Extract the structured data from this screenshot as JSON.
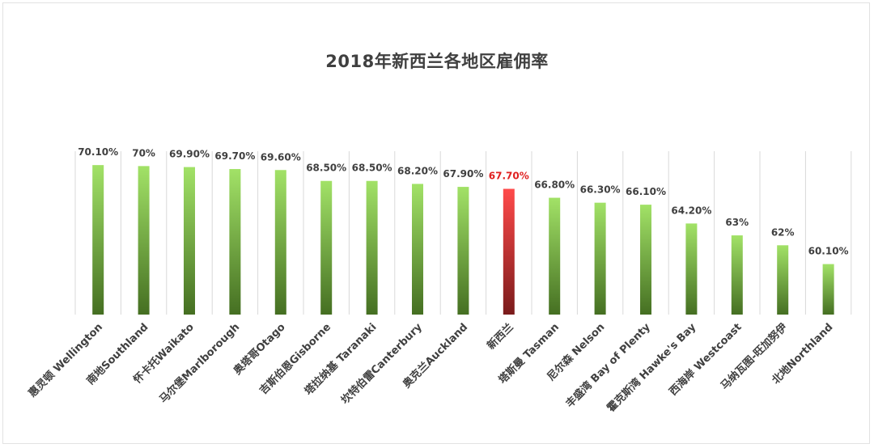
{
  "chart_data": {
    "type": "bar",
    "title": "2018年新西兰各地区雇佣率",
    "xlabel": "",
    "ylabel": "",
    "ylim": [
      55,
      71.5
    ],
    "grid": false,
    "legend": "none",
    "categories": [
      "惠灵顿 Wellington",
      "南地Southland",
      "怀卡托Waikato",
      "马尔堡Marlborough",
      "奥塔哥Otago",
      "吉斯伯恩Gisborne",
      "塔拉纳基 Taranaki",
      "坎特伯雷Canterbury",
      "奥克兰Auckland",
      "新西兰",
      "塔斯曼 Tasman",
      "尼尔森 Nelson",
      "丰盛湾 Bay of Plenty",
      "霍克斯湾 Hawke's Bay",
      "西海岸 Westcoast",
      "马纳瓦图-旺加努伊",
      "北地Northland"
    ],
    "values": [
      70.1,
      70,
      69.9,
      69.7,
      69.6,
      68.5,
      68.5,
      68.2,
      67.9,
      67.7,
      66.8,
      66.3,
      66.1,
      64.2,
      63,
      62,
      60.1
    ],
    "value_labels": [
      "70.10%",
      "70%",
      "69.90%",
      "69.70%",
      "69.60%",
      "68.50%",
      "68.50%",
      "68.20%",
      "67.90%",
      "67.70%",
      "66.80%",
      "66.30%",
      "66.10%",
      "64.20%",
      "63%",
      "62%",
      "60.10%"
    ],
    "highlight_index": 9,
    "colors": {
      "bar_top": "#a2e267",
      "bar_bottom": "#456f22",
      "highlight_top": "#ff4a4a",
      "highlight_bottom": "#7a1b1b",
      "label": "#404040",
      "highlight_label": "#e02020",
      "separator": "#d9d9d9"
    }
  }
}
